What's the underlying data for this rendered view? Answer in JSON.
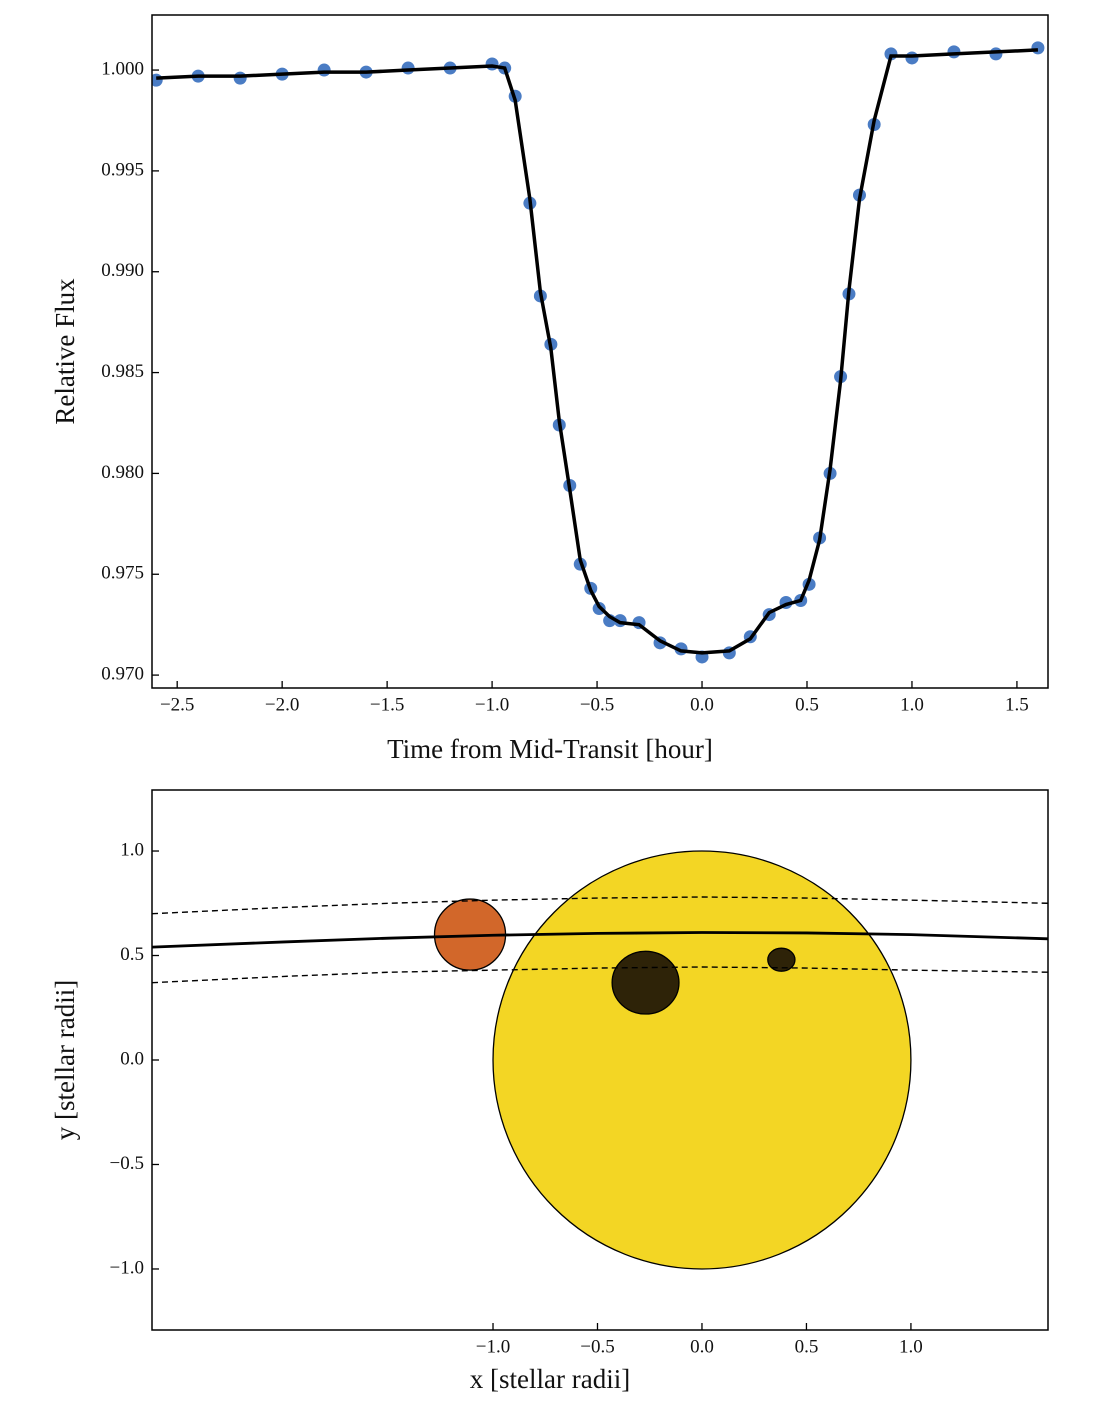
{
  "chart_data": [
    {
      "type": "line",
      "xlabel": "Time from Mid-Transit [hour]",
      "ylabel": "Relative Flux",
      "x": [
        -2.6,
        -2.4,
        -2.2,
        -2.0,
        -1.8,
        -1.6,
        -1.4,
        -1.2,
        -1.0,
        -0.94,
        -0.89,
        -0.82,
        -0.77,
        -0.72,
        -0.68,
        -0.63,
        -0.58,
        -0.53,
        -0.49,
        -0.44,
        -0.39,
        -0.3,
        -0.2,
        -0.1,
        0.0,
        0.13,
        0.23,
        0.32,
        0.4,
        0.47,
        0.51,
        0.56,
        0.61,
        0.66,
        0.7,
        0.75,
        0.82,
        0.9,
        1.0,
        1.2,
        1.4,
        1.6
      ],
      "series": [
        {
          "type": "scatter",
          "color": "#4a7cc4",
          "values": [
            0.9995,
            0.9997,
            0.9996,
            0.9998,
            1.0,
            0.9999,
            1.0001,
            1.0001,
            1.0003,
            1.0001,
            0.9987,
            0.9934,
            0.9888,
            0.9864,
            0.9824,
            0.9794,
            0.9755,
            0.9743,
            0.9733,
            0.9727,
            0.9727,
            0.9726,
            0.9716,
            0.9713,
            0.9709,
            0.9711,
            0.9719,
            0.973,
            0.9736,
            0.9737,
            0.9745,
            0.9768,
            0.98,
            0.9848,
            0.9889,
            0.9938,
            0.9973,
            1.0008,
            1.0006,
            1.0009,
            1.0008,
            1.0011
          ]
        },
        {
          "type": "line",
          "color": "#000000",
          "values": [
            0.9996,
            0.9997,
            0.9997,
            0.9998,
            0.9999,
            0.9999,
            1.0,
            1.0001,
            1.0002,
            1.0001,
            0.9985,
            0.9936,
            0.989,
            0.9862,
            0.9826,
            0.9792,
            0.9757,
            0.9742,
            0.9734,
            0.9729,
            0.9726,
            0.9725,
            0.9717,
            0.9712,
            0.9711,
            0.9712,
            0.9718,
            0.9731,
            0.9735,
            0.9737,
            0.9747,
            0.9767,
            0.9802,
            0.9846,
            0.9891,
            0.9936,
            0.9975,
            1.0007,
            1.0007,
            1.0008,
            1.0009,
            1.001
          ]
        }
      ],
      "xlim": [
        -2.62,
        1.648
      ],
      "ylim": [
        0.96936,
        1.00273
      ],
      "xticks": [
        {
          "value": -2.5,
          "label": "−2.5"
        },
        {
          "value": -2.0,
          "label": "−2.0"
        },
        {
          "value": -1.5,
          "label": "−1.5"
        },
        {
          "value": -1.0,
          "label": "−1.0"
        },
        {
          "value": -0.5,
          "label": "−0.5"
        },
        {
          "value": 0,
          "label": "0.0"
        },
        0.5,
        {
          "value": 1,
          "label": "1.0"
        },
        1.5
      ],
      "yticks": [
        {
          "value": 0.97,
          "label": "0.970"
        },
        0.975,
        {
          "value": 0.98,
          "label": "0.980"
        },
        0.985,
        {
          "value": 0.99,
          "label": "0.990"
        },
        0.995,
        {
          "value": 1.0,
          "label": "1.000"
        }
      ]
    },
    {
      "type": "shapes",
      "xlabel": "x [stellar radii]",
      "ylabel": "y [stellar radii]",
      "lines": [
        {
          "dash": false,
          "x": [
            -2.632,
            -2.0,
            -1.5,
            -1.0,
            -0.5,
            0.0,
            0.5,
            1.0,
            1.656
          ],
          "y": [
            0.54,
            0.565,
            0.583,
            0.597,
            0.606,
            0.61,
            0.608,
            0.6,
            0.58
          ]
        },
        {
          "dash": true,
          "x": [
            -2.632,
            -2.0,
            -1.5,
            -1.0,
            -0.5,
            0.0,
            0.5,
            1.0,
            1.656
          ],
          "y": [
            0.7,
            0.73,
            0.75,
            0.765,
            0.775,
            0.78,
            0.775,
            0.765,
            0.75
          ]
        },
        {
          "dash": true,
          "x": [
            -2.632,
            -2.0,
            -1.5,
            -1.0,
            -0.5,
            0.0,
            0.5,
            1.0,
            1.656
          ],
          "y": [
            0.37,
            0.4,
            0.42,
            0.43,
            0.44,
            0.445,
            0.44,
            0.43,
            0.42
          ]
        }
      ],
      "circles": [
        {
          "x": 0.0,
          "y": 0.0,
          "rx": 1.0,
          "ry": 1.0,
          "color": "#f3d624"
        },
        {
          "x": -1.11,
          "y": 0.6,
          "rx": 0.17,
          "ry": 0.17,
          "color": "#d2672a"
        },
        {
          "x": -0.27,
          "y": 0.37,
          "rx": 0.16,
          "ry": 0.15,
          "color": "#2e2308"
        },
        {
          "x": 0.38,
          "y": 0.48,
          "rx": 0.065,
          "ry": 0.055,
          "color": "#2e2308"
        }
      ],
      "xlim": [
        -2.632,
        1.656
      ],
      "ylim": [
        -1.292,
        1.292
      ],
      "xticks": [
        {
          "value": -1.0,
          "label": "−1.0"
        },
        {
          "value": -0.5,
          "label": "−0.5"
        },
        {
          "value": 0,
          "label": "0.0"
        },
        0.5,
        {
          "value": 1,
          "label": "1.0"
        }
      ],
      "yticks": [
        {
          "value": -1.0,
          "label": "−1.0"
        },
        {
          "value": -0.5,
          "label": "−0.5"
        },
        {
          "value": 0,
          "label": "0.0"
        },
        0.5,
        {
          "value": 1,
          "label": "1.0"
        }
      ]
    }
  ]
}
